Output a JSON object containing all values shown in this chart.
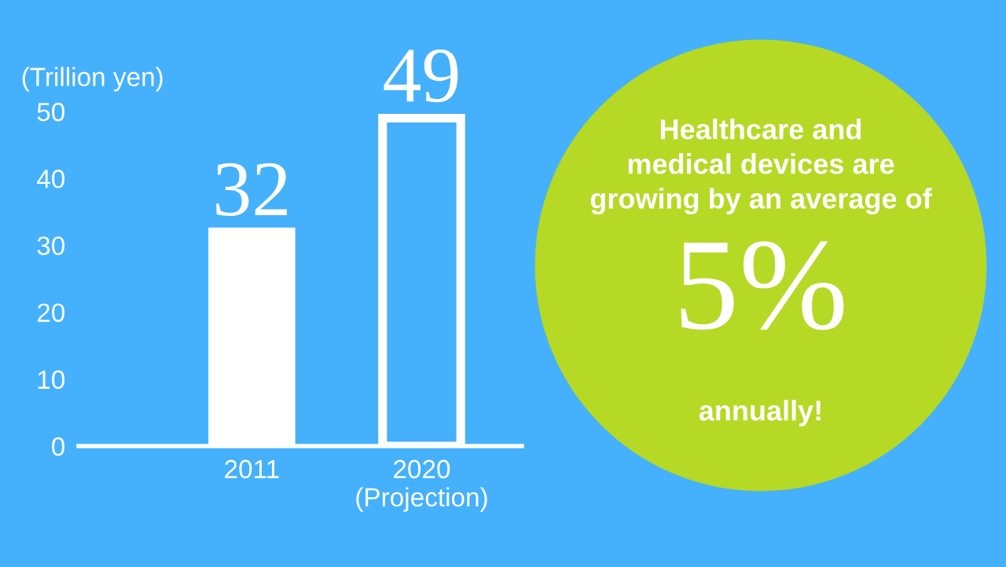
{
  "chart_data": {
    "type": "bar",
    "ylabel": "(Trillion yen)",
    "categories": [
      "2011",
      "2020\n(Projection)"
    ],
    "values": [
      32,
      49
    ],
    "colors": [
      "#ffffff",
      "#45b0fb"
    ],
    "ylim": [
      0,
      50
    ],
    "yticks": [
      0,
      10,
      20,
      30,
      40,
      50
    ],
    "data_labels": true,
    "annotations": [
      "Healthcare and\nmedical devices are\ngrowing by an average of",
      "5%",
      "annually!"
    ]
  }
}
